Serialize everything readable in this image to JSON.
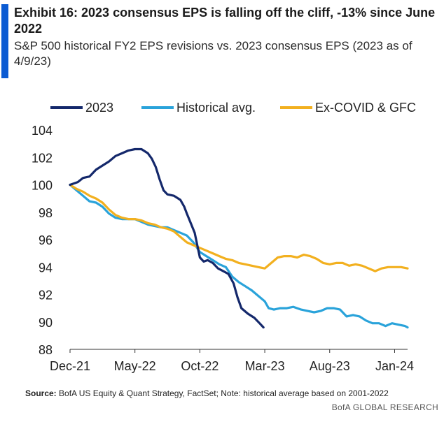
{
  "header": {
    "title": "Exhibit 16: 2023  consensus EPS is falling off the cliff, -13% since June 2022",
    "subtitle": "S&P 500 historical FY2 EPS revisions vs. 2023 consensus EPS (2023 as of 4/9/23)"
  },
  "footer": {
    "source_label": "Source:",
    "source_text": "BofA US Equity  & Quant Strategy, FactSet; Note: historical average based on 2001-2022",
    "brand": "BofA GLOBAL RESEARCH"
  },
  "chart_data": {
    "type": "line",
    "ylim": [
      88,
      104
    ],
    "yticks": [
      88,
      90,
      92,
      94,
      96,
      98,
      100,
      102,
      104
    ],
    "xlim": [
      0,
      26
    ],
    "xticks": [
      {
        "pos": 0,
        "label": "Dec-21"
      },
      {
        "pos": 5,
        "label": "May-22"
      },
      {
        "pos": 10,
        "label": "Oct-22"
      },
      {
        "pos": 15,
        "label": "Mar-23"
      },
      {
        "pos": 20,
        "label": "Aug-23"
      },
      {
        "pos": 25,
        "label": "Jan-24"
      }
    ],
    "legend_position": "top",
    "grid": false,
    "series": [
      {
        "name": "2023",
        "color": "#14286b",
        "points": [
          [
            0,
            100
          ],
          [
            0.6,
            100.2
          ],
          [
            1,
            100.5
          ],
          [
            1.5,
            100.6
          ],
          [
            2,
            101.1
          ],
          [
            2.5,
            101.4
          ],
          [
            3,
            101.7
          ],
          [
            3.5,
            102.1
          ],
          [
            4,
            102.3
          ],
          [
            4.5,
            102.5
          ],
          [
            5,
            102.6
          ],
          [
            5.5,
            102.6
          ],
          [
            6,
            102.3
          ],
          [
            6.3,
            101.9
          ],
          [
            6.6,
            101.3
          ],
          [
            6.9,
            100.4
          ],
          [
            7.2,
            99.6
          ],
          [
            7.5,
            99.3
          ],
          [
            8,
            99.2
          ],
          [
            8.5,
            98.9
          ],
          [
            8.8,
            98.4
          ],
          [
            9,
            97.9
          ],
          [
            9.3,
            97.2
          ],
          [
            9.6,
            96.5
          ],
          [
            9.8,
            95.6
          ],
          [
            10,
            94.7
          ],
          [
            10.3,
            94.4
          ],
          [
            10.6,
            94.5
          ],
          [
            11,
            94.3
          ],
          [
            11.4,
            93.9
          ],
          [
            11.8,
            93.7
          ],
          [
            12.2,
            93.5
          ],
          [
            12.6,
            92.8
          ],
          [
            12.9,
            91.8
          ],
          [
            13.2,
            91.0
          ],
          [
            13.7,
            90.6
          ],
          [
            14.2,
            90.3
          ],
          [
            14.6,
            89.9
          ],
          [
            14.9,
            89.6
          ]
        ]
      },
      {
        "name": "Historical avg.",
        "color": "#2aa3da",
        "points": [
          [
            0,
            100
          ],
          [
            0.5,
            99.6
          ],
          [
            1,
            99.2
          ],
          [
            1.5,
            98.8
          ],
          [
            2,
            98.7
          ],
          [
            2.5,
            98.4
          ],
          [
            3,
            97.9
          ],
          [
            3.5,
            97.6
          ],
          [
            4,
            97.5
          ],
          [
            4.5,
            97.5
          ],
          [
            5,
            97.5
          ],
          [
            5.5,
            97.3
          ],
          [
            6,
            97.1
          ],
          [
            6.5,
            97.0
          ],
          [
            7,
            96.9
          ],
          [
            7.5,
            96.9
          ],
          [
            8,
            96.7
          ],
          [
            8.5,
            96.5
          ],
          [
            9,
            96.3
          ],
          [
            9.5,
            95.8
          ],
          [
            10,
            95.1
          ],
          [
            10.5,
            94.8
          ],
          [
            11,
            94.5
          ],
          [
            11.5,
            94.2
          ],
          [
            12,
            94.0
          ],
          [
            12.5,
            93.3
          ],
          [
            13,
            92.9
          ],
          [
            13.5,
            92.6
          ],
          [
            14,
            92.3
          ],
          [
            14.5,
            91.9
          ],
          [
            15,
            91.5
          ],
          [
            15.3,
            91.0
          ],
          [
            15.7,
            90.9
          ],
          [
            16.2,
            91.0
          ],
          [
            16.7,
            91.0
          ],
          [
            17.2,
            91.1
          ],
          [
            17.8,
            90.9
          ],
          [
            18.3,
            90.8
          ],
          [
            18.8,
            90.7
          ],
          [
            19.3,
            90.8
          ],
          [
            19.8,
            91.0
          ],
          [
            20.3,
            91.0
          ],
          [
            20.8,
            90.9
          ],
          [
            21.3,
            90.4
          ],
          [
            21.8,
            90.5
          ],
          [
            22.3,
            90.4
          ],
          [
            22.8,
            90.1
          ],
          [
            23.3,
            89.9
          ],
          [
            23.8,
            89.9
          ],
          [
            24.3,
            89.7
          ],
          [
            24.8,
            89.9
          ],
          [
            25.3,
            89.8
          ],
          [
            25.8,
            89.7
          ],
          [
            26,
            89.6
          ]
        ]
      },
      {
        "name": "Ex-COVID & GFC",
        "color": "#f2b01f",
        "points": [
          [
            0,
            100
          ],
          [
            0.5,
            99.7
          ],
          [
            1,
            99.5
          ],
          [
            1.5,
            99.2
          ],
          [
            2,
            99.0
          ],
          [
            2.5,
            98.7
          ],
          [
            3,
            98.2
          ],
          [
            3.5,
            97.8
          ],
          [
            4,
            97.6
          ],
          [
            4.5,
            97.5
          ],
          [
            5,
            97.5
          ],
          [
            5.5,
            97.4
          ],
          [
            6,
            97.2
          ],
          [
            6.5,
            97.1
          ],
          [
            7,
            96.9
          ],
          [
            7.5,
            96.8
          ],
          [
            8,
            96.6
          ],
          [
            8.5,
            96.2
          ],
          [
            9,
            95.8
          ],
          [
            9.5,
            95.6
          ],
          [
            10,
            95.4
          ],
          [
            10.5,
            95.2
          ],
          [
            11,
            95.0
          ],
          [
            11.5,
            94.8
          ],
          [
            12,
            94.6
          ],
          [
            12.5,
            94.5
          ],
          [
            13,
            94.3
          ],
          [
            13.5,
            94.2
          ],
          [
            14,
            94.1
          ],
          [
            14.5,
            94.0
          ],
          [
            15,
            93.9
          ],
          [
            15.5,
            94.3
          ],
          [
            16,
            94.7
          ],
          [
            16.5,
            94.8
          ],
          [
            17,
            94.8
          ],
          [
            17.5,
            94.7
          ],
          [
            18,
            94.9
          ],
          [
            18.5,
            94.8
          ],
          [
            19,
            94.6
          ],
          [
            19.5,
            94.3
          ],
          [
            20,
            94.2
          ],
          [
            20.5,
            94.3
          ],
          [
            21,
            94.3
          ],
          [
            21.5,
            94.1
          ],
          [
            22,
            94.2
          ],
          [
            22.5,
            94.1
          ],
          [
            23,
            93.9
          ],
          [
            23.5,
            93.7
          ],
          [
            24,
            93.9
          ],
          [
            24.5,
            94.0
          ],
          [
            25,
            94.0
          ],
          [
            25.5,
            94.0
          ],
          [
            26,
            93.9
          ]
        ]
      }
    ]
  }
}
